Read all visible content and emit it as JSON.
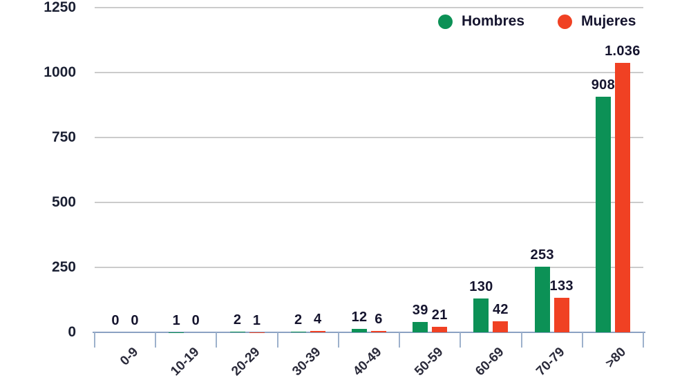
{
  "chart_data": {
    "type": "bar",
    "categories": [
      "0-9",
      "10-19",
      "20-29",
      "30-39",
      "40-49",
      "50-59",
      "60-69",
      "70-79",
      ">80"
    ],
    "series": [
      {
        "name": "Hombres",
        "color": "#0c9156",
        "values": [
          0,
          1,
          2,
          2,
          12,
          39,
          130,
          253,
          908
        ],
        "labels": [
          "0",
          "1",
          "2",
          "2",
          "12",
          "39",
          "130",
          "253",
          "908"
        ]
      },
      {
        "name": "Mujeres",
        "color": "#f04123",
        "values": [
          0,
          0,
          1,
          4,
          6,
          21,
          42,
          133,
          1036
        ],
        "labels": [
          "0",
          "0",
          "1",
          "4",
          "6",
          "21",
          "42",
          "133",
          "1.036"
        ]
      }
    ],
    "title": "",
    "xlabel": "",
    "ylabel": "",
    "ylim": [
      0,
      1250
    ],
    "yticks": [
      0,
      250,
      500,
      750,
      1000,
      1250
    ],
    "grid": true,
    "legend_position": "top-right"
  },
  "legend": {
    "items": [
      {
        "label": "Hombres",
        "color": "#0c9156"
      },
      {
        "label": "Mujeres",
        "color": "#f04123"
      }
    ]
  },
  "colors": {
    "grid": "#cbcbcb",
    "axis_line": "#8ba1c2",
    "tick_line": "#9db1cc",
    "value_text": "#15142e",
    "ytick_text": "#1b2033",
    "xtick_text": "#2a2a3a",
    "legend_text": "#15142e"
  }
}
